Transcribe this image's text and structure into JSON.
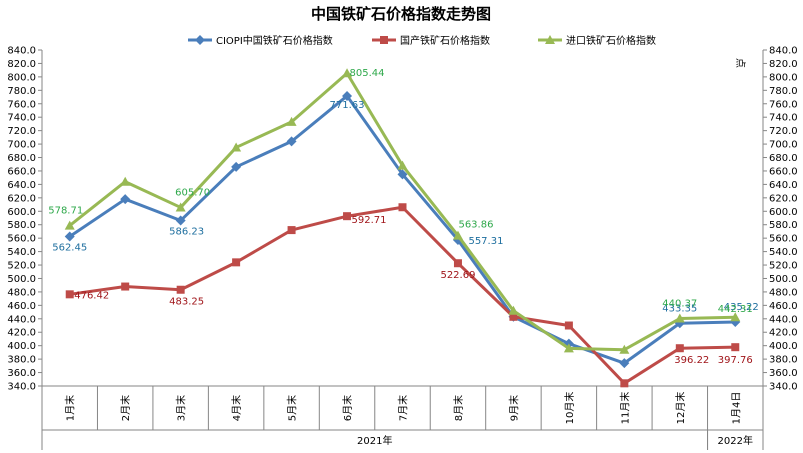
{
  "chart_data": {
    "type": "line",
    "title": "中国铁矿石价格指数走势图",
    "ylabel_right": "点",
    "categories": [
      "1月末",
      "2月末",
      "3月末",
      "4月末",
      "5月末",
      "6月末",
      "7月末",
      "8月末",
      "9月末",
      "10月末",
      "11月末",
      "12月末",
      "1月4日"
    ],
    "category_groups": [
      {
        "label": "2021年",
        "start": 0,
        "end": 11
      },
      {
        "label": "2022年",
        "start": 12,
        "end": 12
      }
    ],
    "ylim_left": [
      340,
      840
    ],
    "ylim_right": [
      340,
      840
    ],
    "ytick_step": 20,
    "grid": false,
    "legend_position": "top",
    "series": [
      {
        "name": "CIOPI中国铁矿石价格指数",
        "color": "#4a7ebb",
        "marker": "diamond",
        "label_color": "#1f6f9f",
        "values": [
          562.45,
          618,
          586.23,
          666,
          704,
          771.63,
          655,
          557.31,
          443,
          403,
          374,
          433.35,
          435.22
        ],
        "data_labels": [
          "562.45",
          null,
          "586.23",
          null,
          null,
          "771.63",
          null,
          "557.31",
          null,
          null,
          null,
          "433.35",
          "435.22"
        ]
      },
      {
        "name": "国产铁矿石价格指数",
        "color": "#be4b48",
        "marker": "square",
        "label_color": "#a0151a",
        "values": [
          476.42,
          488,
          483.25,
          524,
          572,
          592.71,
          606,
          522.69,
          443,
          430,
          344,
          396.22,
          397.76
        ],
        "data_labels": [
          "476.42",
          null,
          "483.25",
          null,
          null,
          "592.71",
          null,
          "522.69",
          null,
          null,
          null,
          "396.22",
          "397.76"
        ]
      },
      {
        "name": "进口铁矿石价格指数",
        "color": "#98b954",
        "marker": "triangle",
        "label_color": "#2ea84a",
        "values": [
          578.71,
          644,
          605.7,
          695,
          733,
          805.44,
          668,
          563.86,
          452,
          396,
          394,
          440.37,
          442.31
        ],
        "data_labels": [
          "578.71",
          null,
          "605.70",
          null,
          null,
          "805.44",
          null,
          "563.86",
          null,
          null,
          null,
          "440.37",
          "442.31"
        ]
      }
    ]
  }
}
